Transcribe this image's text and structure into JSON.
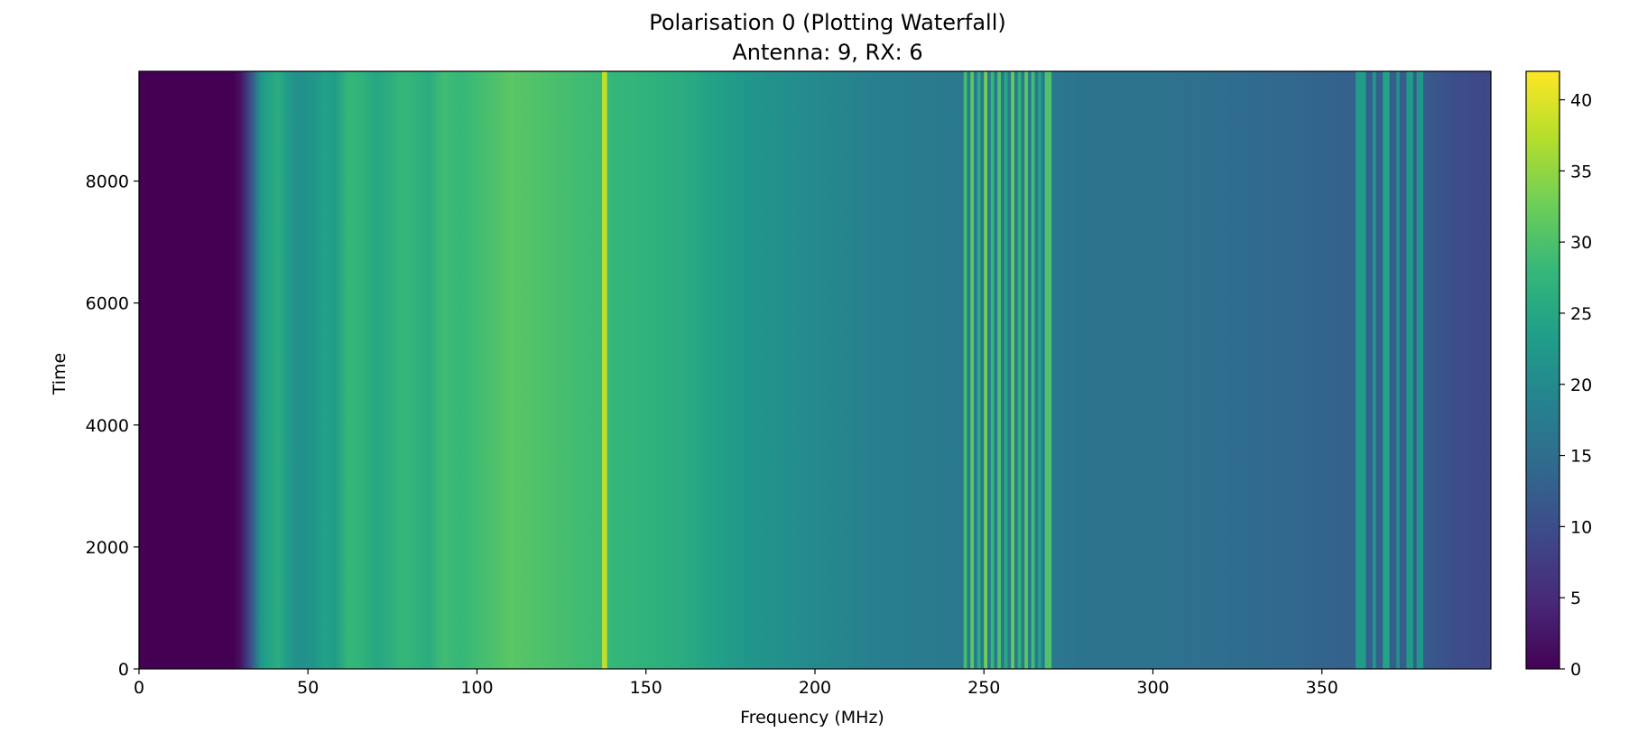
{
  "chart_data": {
    "type": "heatmap",
    "title": "Polarisation 0 (Plotting Waterfall)",
    "subtitle": "Antenna: 9, RX: 6",
    "xlabel": "Frequency (MHz)",
    "ylabel": "Time",
    "xlim": [
      0,
      400
    ],
    "ylim": [
      0,
      9800
    ],
    "xticks": [
      0,
      50,
      100,
      150,
      200,
      250,
      300,
      350
    ],
    "yticks": [
      0,
      2000,
      4000,
      6000,
      8000
    ],
    "colorbar": {
      "label": "",
      "range": [
        0,
        42
      ],
      "ticks": [
        0,
        5,
        10,
        15,
        20,
        25,
        30,
        35,
        40
      ],
      "colormap": "viridis"
    },
    "colormap_stops": [
      "#440154",
      "#482878",
      "#3e4989",
      "#31688e",
      "#26828e",
      "#1f9e89",
      "#35b779",
      "#6ece58",
      "#b5de2b",
      "#fde725"
    ],
    "spectrum_profile": [
      [
        0,
        0
      ],
      [
        28,
        0
      ],
      [
        30,
        2
      ],
      [
        33,
        10
      ],
      [
        36,
        22
      ],
      [
        38,
        24
      ],
      [
        41,
        26
      ],
      [
        44,
        23
      ],
      [
        47,
        21
      ],
      [
        52,
        22
      ],
      [
        55,
        24
      ],
      [
        58,
        23
      ],
      [
        62,
        28
      ],
      [
        66,
        27
      ],
      [
        70,
        25
      ],
      [
        74,
        26
      ],
      [
        78,
        28
      ],
      [
        82,
        27
      ],
      [
        86,
        26
      ],
      [
        90,
        29
      ],
      [
        95,
        28
      ],
      [
        100,
        29
      ],
      [
        105,
        30
      ],
      [
        110,
        31
      ],
      [
        115,
        30.5
      ],
      [
        120,
        30
      ],
      [
        125,
        29.5
      ],
      [
        130,
        29
      ],
      [
        136,
        28.5
      ],
      [
        140,
        28
      ],
      [
        150,
        27
      ],
      [
        160,
        26
      ],
      [
        170,
        24
      ],
      [
        180,
        22
      ],
      [
        190,
        21
      ],
      [
        200,
        20
      ],
      [
        210,
        19
      ],
      [
        220,
        18
      ],
      [
        230,
        17.5
      ],
      [
        243,
        17
      ],
      [
        270,
        17
      ],
      [
        280,
        16
      ],
      [
        300,
        16
      ],
      [
        320,
        15
      ],
      [
        340,
        14
      ],
      [
        360,
        13
      ],
      [
        380,
        12
      ],
      [
        390,
        10
      ],
      [
        400,
        9
      ]
    ],
    "narrowband_lines": [
      {
        "start": 244,
        "end": 245,
        "value": 29
      },
      {
        "start": 246,
        "end": 247,
        "value": 31
      },
      {
        "start": 248,
        "end": 249,
        "value": 26
      },
      {
        "start": 250,
        "end": 251,
        "value": 33
      },
      {
        "start": 252,
        "end": 253,
        "value": 28
      },
      {
        "start": 254,
        "end": 255,
        "value": 30
      },
      {
        "start": 256,
        "end": 257,
        "value": 25
      },
      {
        "start": 258,
        "end": 259,
        "value": 32
      },
      {
        "start": 260,
        "end": 261,
        "value": 27
      },
      {
        "start": 262,
        "end": 263,
        "value": 31
      },
      {
        "start": 264,
        "end": 265,
        "value": 29
      },
      {
        "start": 266,
        "end": 267,
        "value": 24
      },
      {
        "start": 268,
        "end": 270,
        "value": 30
      },
      {
        "start": 360,
        "end": 363,
        "value": 23
      },
      {
        "start": 365,
        "end": 366,
        "value": 22
      },
      {
        "start": 368,
        "end": 370,
        "value": 24
      },
      {
        "start": 372,
        "end": 373,
        "value": 21
      },
      {
        "start": 375,
        "end": 377,
        "value": 23
      },
      {
        "start": 378,
        "end": 380,
        "value": 22
      },
      {
        "start": 137,
        "end": 138.5,
        "value": 38
      }
    ]
  }
}
